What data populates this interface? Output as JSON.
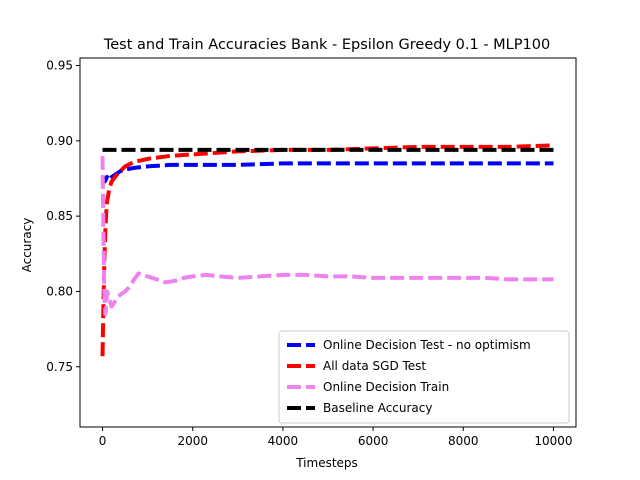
{
  "chart_data": {
    "type": "line",
    "title": "Test and Train Accuracies Bank - Epsilon Greedy 0.1 - MLP100",
    "xlabel": "Timesteps",
    "ylabel": "Accuracy",
    "xlim": [
      -500,
      10500
    ],
    "ylim": [
      0.71,
      0.955
    ],
    "xticks": [
      0,
      2000,
      4000,
      6000,
      8000,
      10000
    ],
    "xtick_labels": [
      "0",
      "2000",
      "4000",
      "6000",
      "8000",
      "10000"
    ],
    "yticks": [
      0.75,
      0.8,
      0.85,
      0.9,
      0.95
    ],
    "ytick_labels": [
      "0.75",
      "0.80",
      "0.85",
      "0.90",
      "0.95"
    ],
    "grid": false,
    "legend_position": "lower-right",
    "series": [
      {
        "name": "Online Decision Test - no optimism",
        "color": "#0000ff",
        "x": [
          0,
          20,
          50,
          100,
          150,
          200,
          300,
          400,
          500,
          700,
          1000,
          1500,
          2000,
          3000,
          4000,
          5000,
          6000,
          7000,
          8000,
          9000,
          10000
        ],
        "values": [
          0.874,
          0.876,
          0.873,
          0.876,
          0.874,
          0.876,
          0.878,
          0.88,
          0.881,
          0.882,
          0.883,
          0.884,
          0.884,
          0.884,
          0.885,
          0.885,
          0.885,
          0.885,
          0.885,
          0.885,
          0.885
        ]
      },
      {
        "name": "All data SGD Test",
        "color": "#ff0000",
        "x": [
          0,
          20,
          40,
          60,
          80,
          100,
          150,
          200,
          300,
          400,
          500,
          700,
          1000,
          1500,
          2000,
          3000,
          4000,
          5000,
          6000,
          7000,
          8000,
          9000,
          10000
        ],
        "values": [
          0.757,
          0.79,
          0.82,
          0.84,
          0.852,
          0.86,
          0.868,
          0.873,
          0.877,
          0.88,
          0.883,
          0.886,
          0.888,
          0.89,
          0.891,
          0.893,
          0.894,
          0.894,
          0.895,
          0.896,
          0.896,
          0.896,
          0.897
        ]
      },
      {
        "name": "Online Decision Train",
        "color": "#ee82ee",
        "x": [
          0,
          20,
          40,
          60,
          80,
          100,
          150,
          200,
          250,
          300,
          400,
          500,
          600,
          700,
          800,
          1000,
          1200,
          1400,
          1600,
          1800,
          2000,
          2300,
          2600,
          3000,
          3500,
          4000,
          4500,
          5000,
          5500,
          6000,
          6500,
          7000,
          7500,
          8000,
          8500,
          9000,
          9500,
          10000
        ],
        "values": [
          0.89,
          0.84,
          0.8,
          0.785,
          0.79,
          0.8,
          0.795,
          0.79,
          0.792,
          0.795,
          0.798,
          0.8,
          0.803,
          0.808,
          0.812,
          0.81,
          0.808,
          0.806,
          0.807,
          0.809,
          0.81,
          0.811,
          0.81,
          0.809,
          0.81,
          0.811,
          0.811,
          0.81,
          0.81,
          0.809,
          0.809,
          0.809,
          0.809,
          0.809,
          0.809,
          0.808,
          0.808,
          0.808
        ]
      },
      {
        "name": "Baseline Accuracy",
        "color": "#000000",
        "x": [
          0,
          10000
        ],
        "values": [
          0.894,
          0.894
        ]
      }
    ]
  }
}
